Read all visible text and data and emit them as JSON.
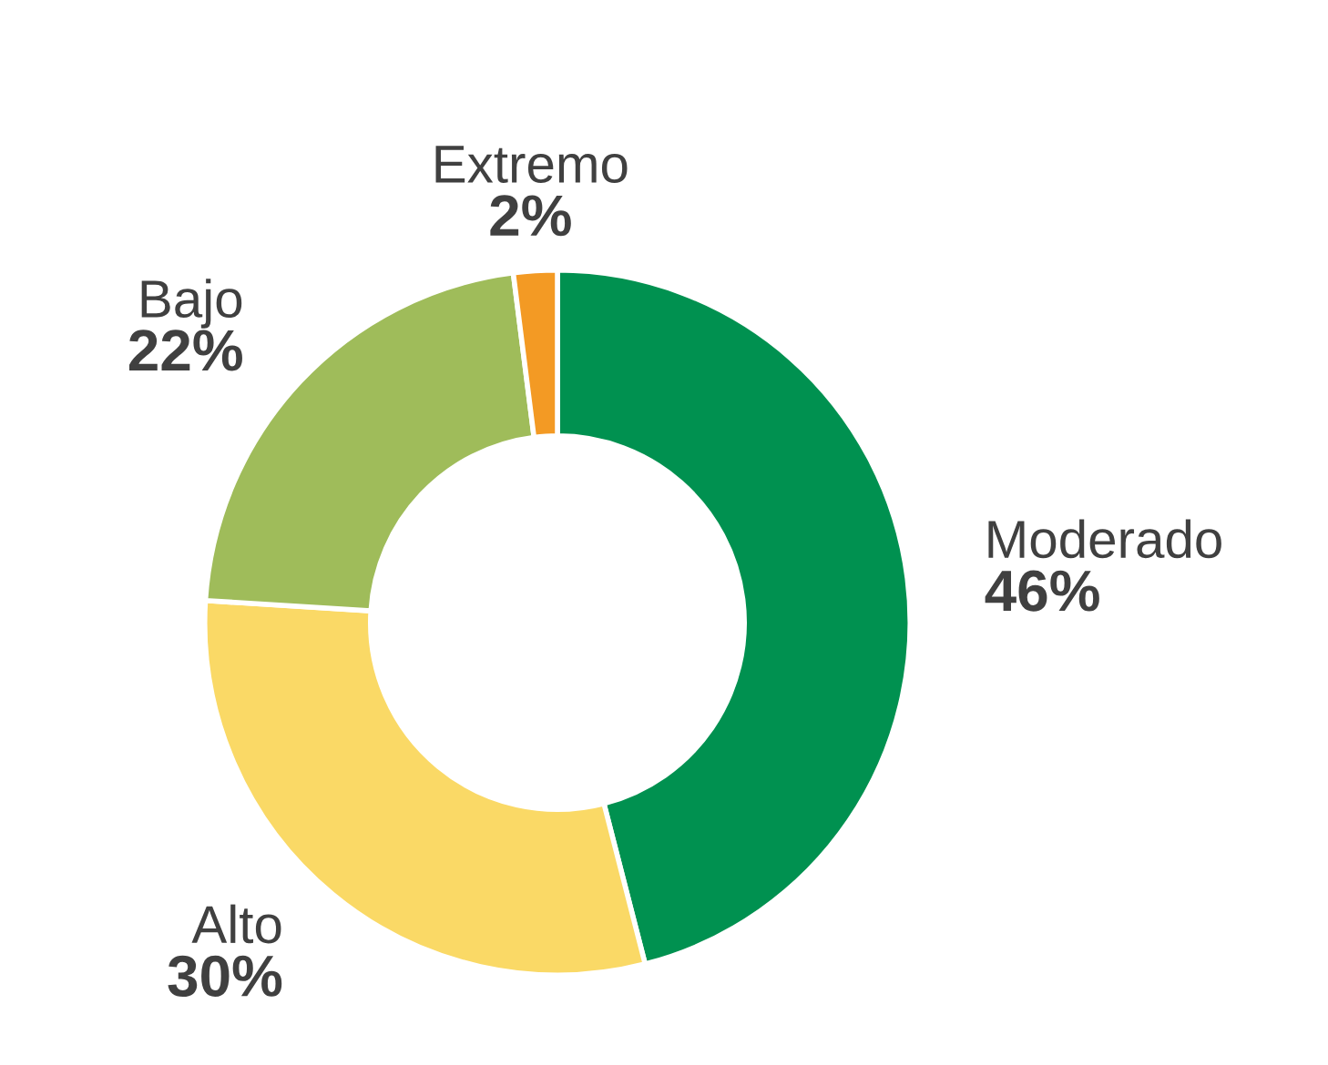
{
  "chart_data": {
    "type": "donut",
    "categories": [
      "Moderado",
      "Alto",
      "Bajo",
      "Extremo"
    ],
    "values": [
      46,
      30,
      22,
      2
    ],
    "value_labels": [
      "46%",
      "30%",
      "22%",
      "2%"
    ],
    "colors": [
      "#009150",
      "#fad966",
      "#9fbc5a",
      "#f39a24"
    ],
    "legend": false
  }
}
